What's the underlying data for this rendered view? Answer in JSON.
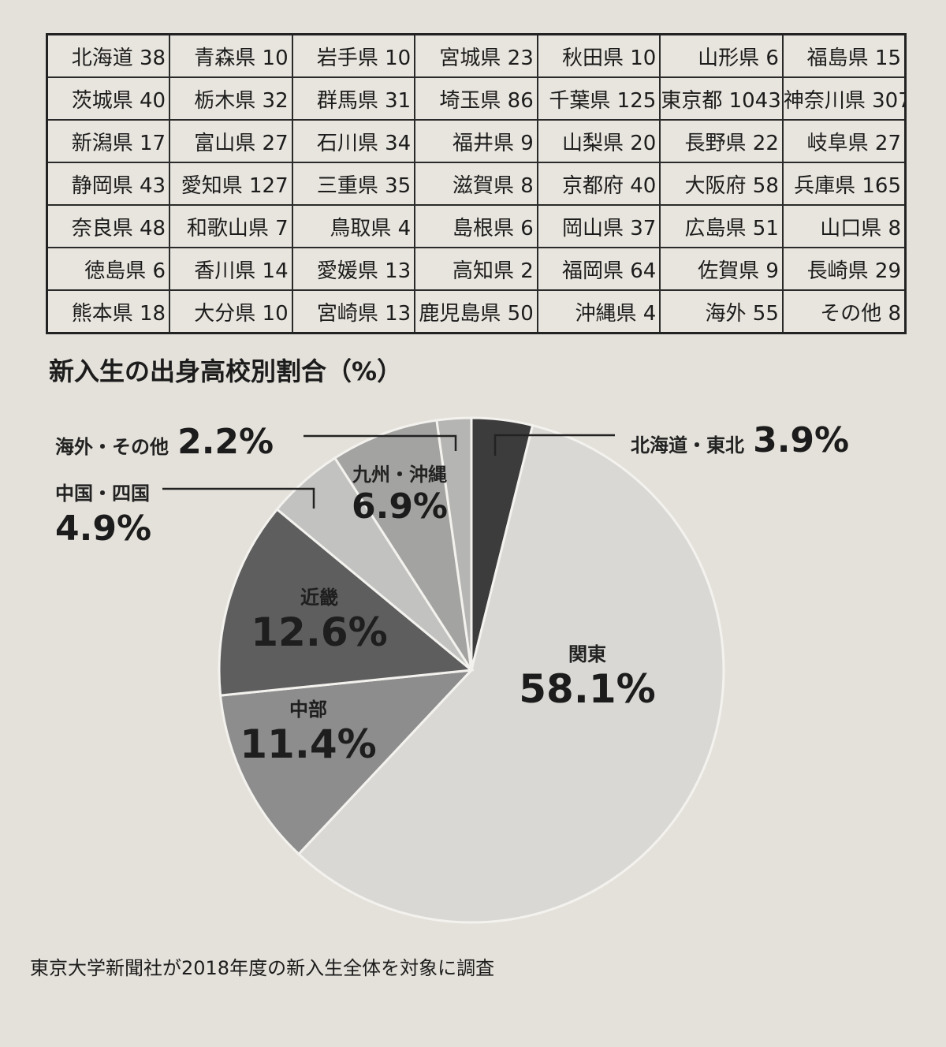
{
  "table": {
    "rows": [
      [
        "北海道 38",
        "青森県 10",
        "岩手県 10",
        "宮城県 23",
        "秋田県 10",
        "山形県 6",
        "福島県 15"
      ],
      [
        "茨城県 40",
        "栃木県 32",
        "群馬県 31",
        "埼玉県 86",
        "千葉県 125",
        "東京都 1043",
        "神奈川県 307"
      ],
      [
        "新潟県 17",
        "富山県 27",
        "石川県 34",
        "福井県 9",
        "山梨県 20",
        "長野県 22",
        "岐阜県 27"
      ],
      [
        "静岡県 43",
        "愛知県 127",
        "三重県 35",
        "滋賀県 8",
        "京都府 40",
        "大阪府 58",
        "兵庫県 165"
      ],
      [
        "奈良県 48",
        "和歌山県 7",
        "鳥取県 4",
        "島根県 6",
        "岡山県 37",
        "広島県 51",
        "山口県 8"
      ],
      [
        "徳島県 6",
        "香川県 14",
        "愛媛県 13",
        "高知県 2",
        "福岡県 64",
        "佐賀県 9",
        "長崎県 29"
      ],
      [
        "熊本県 18",
        "大分県 10",
        "宮崎県 13",
        "鹿児島県 50",
        "沖縄県 4",
        "海外 55",
        "その他 8"
      ]
    ]
  },
  "chart_data": {
    "type": "pie",
    "title": "新入生の出身高校別割合（%）",
    "slices": [
      {
        "name": "北海道・東北",
        "value": 3.9,
        "label": "3.9%",
        "color": "#3c3c3c"
      },
      {
        "name": "関東",
        "value": 58.1,
        "label": "58.1%",
        "color": "#d9d8d4"
      },
      {
        "name": "中部",
        "value": 11.4,
        "label": "11.4%",
        "color": "#8d8d8d"
      },
      {
        "name": "近畿",
        "value": 12.6,
        "label": "12.6%",
        "color": "#5e5e5e"
      },
      {
        "name": "中国・四国",
        "value": 4.9,
        "label": "4.9%",
        "color": "#c2c2c0"
      },
      {
        "name": "九州・沖縄",
        "value": 6.9,
        "label": "6.9%",
        "color": "#a3a3a1"
      },
      {
        "name": "海外・その他",
        "value": 2.2,
        "label": "2.2%",
        "color": "#b5b5b3"
      }
    ]
  },
  "footnote": "東京大学新聞社が2018年度の新入生全体を対象に調査"
}
